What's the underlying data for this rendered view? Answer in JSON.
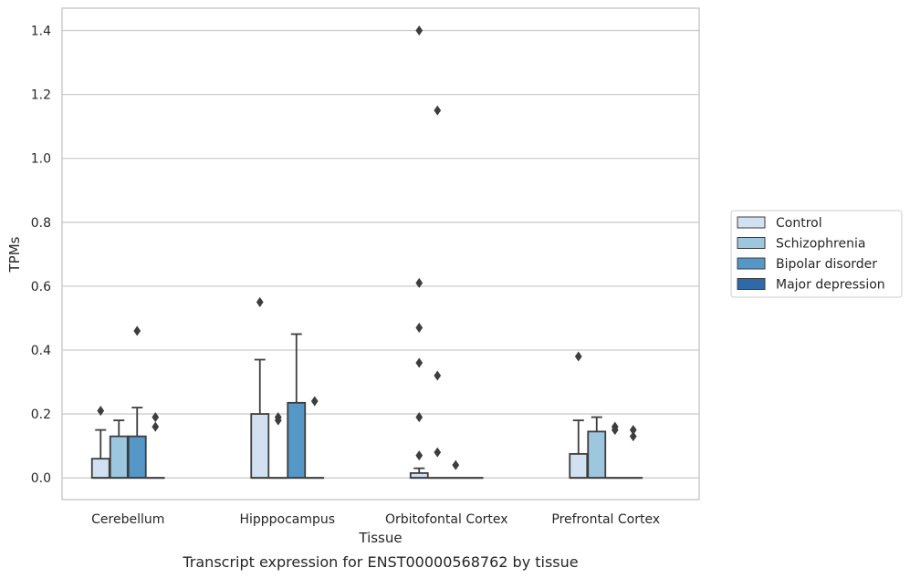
{
  "caption": "Transcript expression for ENST00000568762 by tissue",
  "chart_data": {
    "type": "box",
    "xlabel": "Tissue",
    "ylabel": "TPMs",
    "ylim": [
      -0.068,
      1.47
    ],
    "yticks": [
      0.0,
      0.2,
      0.4,
      0.6,
      0.8,
      1.0,
      1.2,
      1.4
    ],
    "ytick_labels": [
      "0.0",
      "0.2",
      "0.4",
      "0.6",
      "0.8",
      "1.0",
      "1.2",
      "1.4"
    ],
    "grid": "horizontal",
    "legend_position": "right",
    "categories": [
      "Cerebellum",
      "Hipppocampus",
      "Orbitofontal Cortex",
      "Prefrontal Cortex"
    ],
    "series": [
      {
        "name": "Control",
        "color": "#d2e1f1",
        "boxes": [
          {
            "whislo": 0.0,
            "q1": 0.0,
            "med": 0.0,
            "q3": 0.06,
            "whishi": 0.15,
            "fliers": [
              0.21
            ]
          },
          {
            "whislo": 0.0,
            "q1": 0.0,
            "med": 0.0,
            "q3": 0.2,
            "whishi": 0.37,
            "fliers": [
              0.55
            ]
          },
          {
            "whislo": 0.0,
            "q1": 0.0,
            "med": 0.0,
            "q3": 0.015,
            "whishi": 0.03,
            "fliers": [
              0.07,
              0.19,
              0.36,
              0.47,
              0.61,
              1.4
            ]
          },
          {
            "whislo": 0.0,
            "q1": 0.0,
            "med": 0.0,
            "q3": 0.075,
            "whishi": 0.18,
            "fliers": [
              0.38
            ]
          }
        ]
      },
      {
        "name": "Schizophrenia",
        "color": "#9dc6df",
        "boxes": [
          {
            "whislo": 0.0,
            "q1": 0.0,
            "med": 0.0,
            "q3": 0.13,
            "whishi": 0.18,
            "fliers": []
          },
          {
            "whislo": 0.0,
            "q1": 0.0,
            "med": 0.0,
            "q3": 0.0,
            "whishi": 0.0,
            "fliers": [
              0.18,
              0.19
            ]
          },
          {
            "whislo": 0.0,
            "q1": 0.0,
            "med": 0.0,
            "q3": 0.0,
            "whishi": 0.0,
            "fliers": [
              0.08,
              0.32,
              1.15
            ]
          },
          {
            "whislo": 0.0,
            "q1": 0.0,
            "med": 0.0,
            "q3": 0.145,
            "whishi": 0.19,
            "fliers": []
          }
        ]
      },
      {
        "name": "Bipolar disorder",
        "color": "#5597c6",
        "boxes": [
          {
            "whislo": 0.0,
            "q1": 0.0,
            "med": 0.0,
            "q3": 0.13,
            "whishi": 0.22,
            "fliers": [
              0.46
            ]
          },
          {
            "whislo": 0.0,
            "q1": 0.0,
            "med": 0.0,
            "q3": 0.235,
            "whishi": 0.45,
            "fliers": []
          },
          {
            "whislo": 0.0,
            "q1": 0.0,
            "med": 0.0,
            "q3": 0.0,
            "whishi": 0.0,
            "fliers": [
              0.04
            ]
          },
          {
            "whislo": 0.0,
            "q1": 0.0,
            "med": 0.0,
            "q3": 0.0,
            "whishi": 0.0,
            "fliers": [
              0.15,
              0.16
            ]
          }
        ]
      },
      {
        "name": "Major depression",
        "color": "#2e6aa8",
        "boxes": [
          {
            "whislo": 0.0,
            "q1": 0.0,
            "med": 0.0,
            "q3": 0.0,
            "whishi": 0.0,
            "fliers": [
              0.16,
              0.19
            ]
          },
          {
            "whislo": 0.0,
            "q1": 0.0,
            "med": 0.0,
            "q3": 0.0,
            "whishi": 0.0,
            "fliers": [
              0.24
            ]
          },
          {
            "whislo": 0.0,
            "q1": 0.0,
            "med": 0.0,
            "q3": 0.0,
            "whishi": 0.0,
            "fliers": []
          },
          {
            "whislo": 0.0,
            "q1": 0.0,
            "med": 0.0,
            "q3": 0.0,
            "whishi": 0.0,
            "fliers": [
              0.13,
              0.15
            ]
          }
        ]
      }
    ],
    "colors": {
      "grid": "#cccccc",
      "frame": "#c8c8c8",
      "line": "#3d3d3d"
    }
  }
}
